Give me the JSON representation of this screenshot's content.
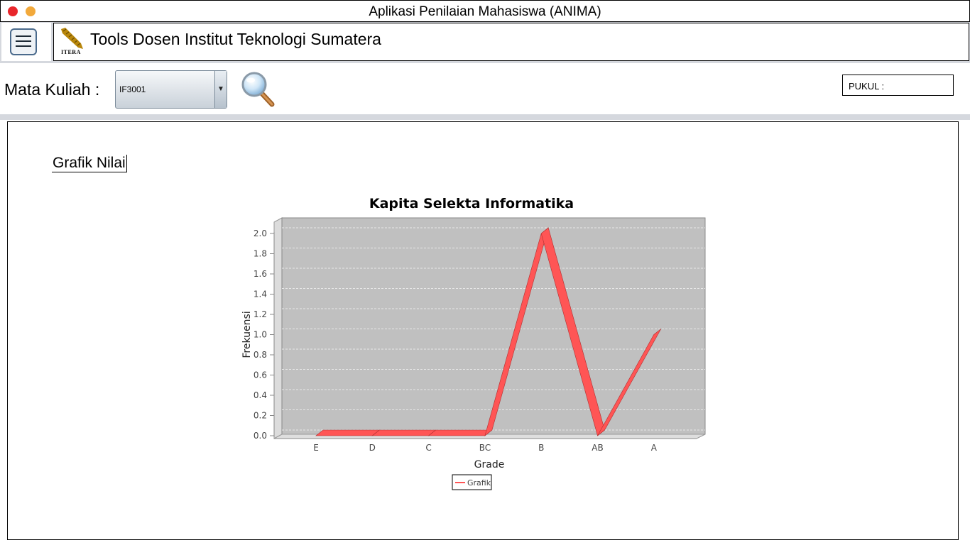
{
  "window": {
    "title": "Aplikasi Penilaian Mahasiswa (ANIMA)",
    "close_color": "#e8262b",
    "minimize_color": "#f2a93b"
  },
  "header": {
    "menu_icon": "hamburger-menu-icon",
    "logo_text": "ITERA",
    "app_title": "Tools Dosen Institut Teknologi Sumatera"
  },
  "toolbar": {
    "course_label": "Mata Kuliah :",
    "course_selected": "IF3001",
    "search_icon": "magnifier-icon",
    "clock_label": "PUKUL :"
  },
  "panel": {
    "section_label": "Grafik Nilai"
  },
  "chart_data": {
    "type": "line",
    "title": "Kapita Selekta Informatika",
    "xlabel": "Grade",
    "ylabel": "Frekuensi",
    "categories": [
      "E",
      "D",
      "C",
      "BC",
      "B",
      "AB",
      "A"
    ],
    "series": [
      {
        "name": "Grafik",
        "values": [
          0,
          0,
          0,
          0,
          2,
          0,
          1
        ],
        "color": "#ff5555"
      }
    ],
    "ylim": [
      0,
      2.0
    ],
    "yticks": [
      "0.0",
      "0.2",
      "0.4",
      "0.6",
      "0.8",
      "1.0",
      "1.2",
      "1.4",
      "1.6",
      "1.8",
      "2.0"
    ],
    "grid": true,
    "legend": "bottom-center",
    "plot_background": "#c0c0c0",
    "style": "3d"
  }
}
